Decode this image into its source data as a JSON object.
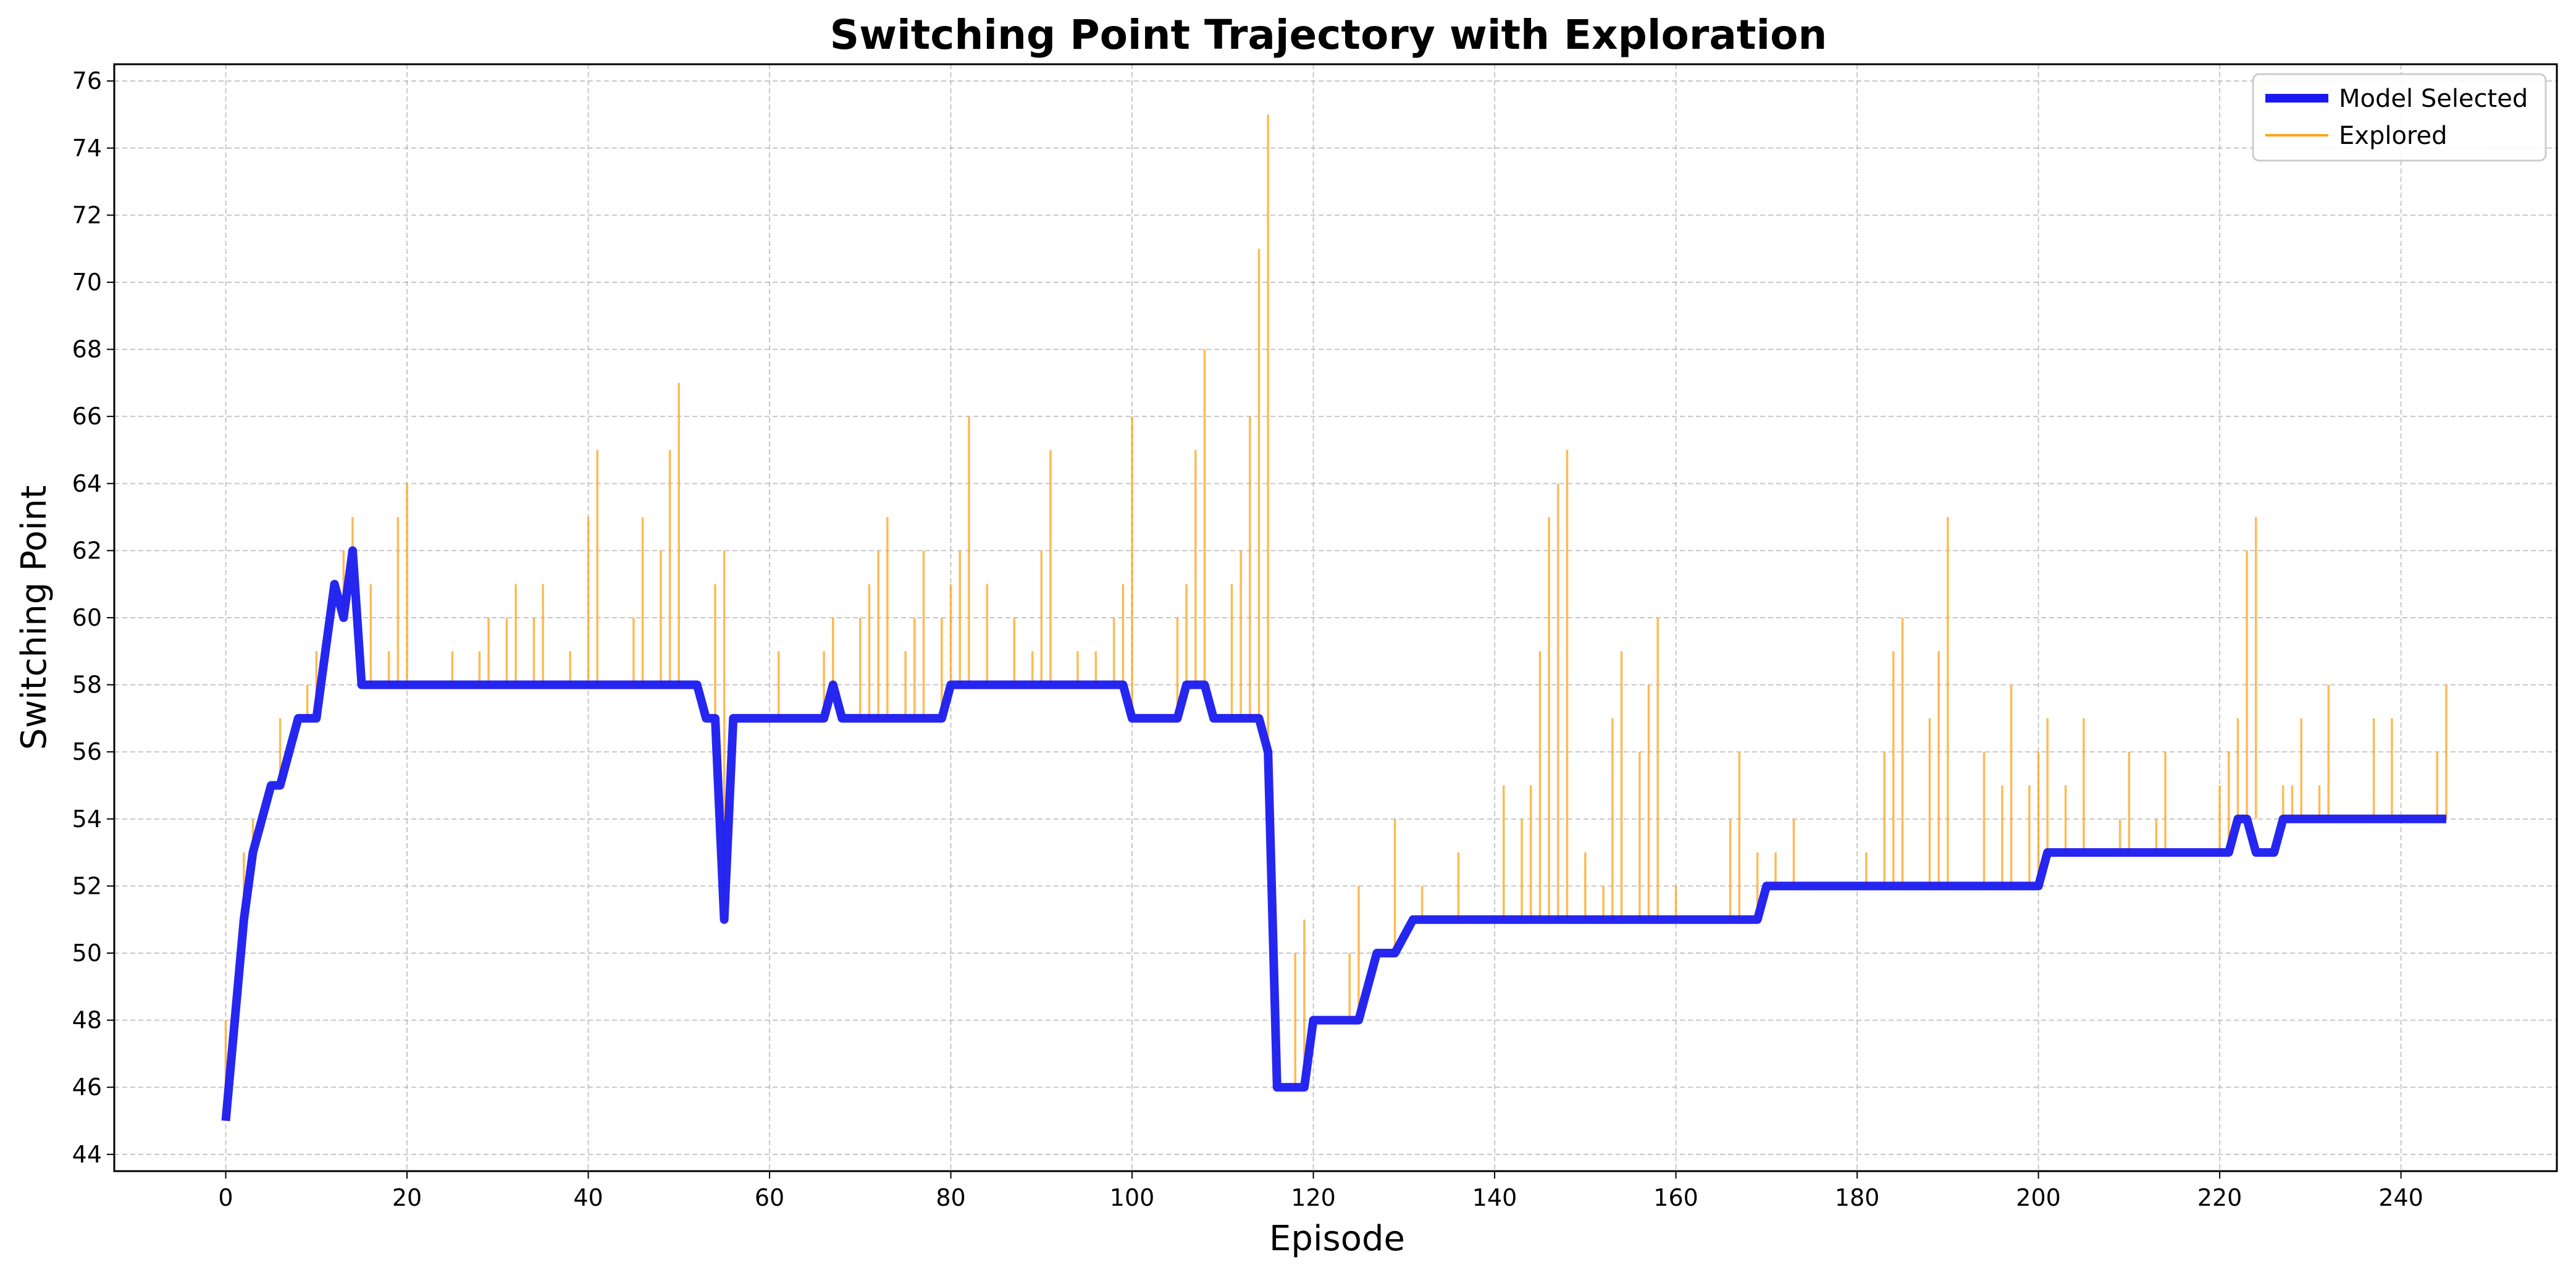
{
  "chart_data": {
    "type": "line",
    "title": "Switching Point Trajectory with Exploration",
    "xlabel": "Episode",
    "ylabel": "Switching Point",
    "xlim": [
      -12.3,
      257.2
    ],
    "ylim": [
      43.5,
      76.5
    ],
    "xticks": [
      0,
      20,
      40,
      60,
      80,
      100,
      120,
      140,
      160,
      180,
      200,
      220,
      240
    ],
    "yticks": [
      44,
      46,
      48,
      50,
      52,
      54,
      56,
      58,
      60,
      62,
      64,
      66,
      68,
      70,
      72,
      74,
      76
    ],
    "grid": true,
    "legend_position": "top-right",
    "colors": {
      "model": "#1a1af0",
      "explored": "#ffa41c"
    },
    "series": [
      {
        "name": "Model Selected",
        "kind": "line",
        "x": [
          0,
          1,
          2,
          3,
          4,
          5,
          6,
          7,
          8,
          9,
          10,
          11,
          12,
          13,
          14,
          15,
          16,
          52,
          53,
          54,
          55,
          56,
          66,
          67,
          68,
          79,
          80,
          99,
          100,
          105,
          106,
          108,
          109,
          114,
          115,
          116,
          119,
          120,
          124,
          125,
          127,
          128,
          129,
          131,
          132,
          169,
          170,
          200,
          201,
          221,
          222,
          223,
          224,
          226,
          227,
          245
        ],
        "y": [
          45,
          48,
          51,
          53,
          54,
          55,
          55,
          56,
          57,
          57,
          57,
          59,
          61,
          60,
          62,
          58,
          58,
          58,
          57,
          57,
          51,
          57,
          57,
          58,
          57,
          57,
          58,
          58,
          57,
          57,
          58,
          58,
          57,
          57,
          56,
          46,
          46,
          48,
          48,
          48,
          50,
          50,
          50,
          51,
          51,
          51,
          52,
          52,
          53,
          53,
          54,
          54,
          53,
          53,
          54,
          54
        ]
      },
      {
        "name": "Explored",
        "kind": "vlines",
        "segments": [
          [
            0,
            45,
            48
          ],
          [
            2,
            51,
            53
          ],
          [
            3,
            53,
            54
          ],
          [
            6,
            55,
            57
          ],
          [
            9,
            57,
            58
          ],
          [
            10,
            57,
            59
          ],
          [
            13,
            60,
            62
          ],
          [
            14,
            62,
            63
          ],
          [
            16,
            58,
            61
          ],
          [
            18,
            58,
            59
          ],
          [
            19,
            58,
            63
          ],
          [
            20,
            58,
            64
          ],
          [
            25,
            58,
            59
          ],
          [
            28,
            58,
            59
          ],
          [
            29,
            58,
            60
          ],
          [
            31,
            58,
            60
          ],
          [
            32,
            58,
            61
          ],
          [
            34,
            58,
            60
          ],
          [
            35,
            58,
            61
          ],
          [
            38,
            58,
            59
          ],
          [
            40,
            58,
            63
          ],
          [
            41,
            58,
            65
          ],
          [
            45,
            58,
            60
          ],
          [
            46,
            58,
            63
          ],
          [
            48,
            58,
            62
          ],
          [
            49,
            58,
            65
          ],
          [
            50,
            58,
            67
          ],
          [
            54,
            57,
            61
          ],
          [
            55,
            51,
            62
          ],
          [
            61,
            57,
            59
          ],
          [
            66,
            57,
            59
          ],
          [
            67,
            58,
            60
          ],
          [
            70,
            57,
            60
          ],
          [
            71,
            57,
            61
          ],
          [
            72,
            57,
            62
          ],
          [
            73,
            57,
            63
          ],
          [
            75,
            57,
            59
          ],
          [
            76,
            57,
            60
          ],
          [
            77,
            57,
            62
          ],
          [
            79,
            57,
            60
          ],
          [
            80,
            58,
            61
          ],
          [
            81,
            58,
            62
          ],
          [
            82,
            58,
            66
          ],
          [
            84,
            58,
            61
          ],
          [
            87,
            58,
            60
          ],
          [
            89,
            58,
            59
          ],
          [
            90,
            58,
            62
          ],
          [
            91,
            58,
            65
          ],
          [
            94,
            58,
            59
          ],
          [
            96,
            58,
            59
          ],
          [
            98,
            58,
            60
          ],
          [
            99,
            58,
            61
          ],
          [
            100,
            57,
            66
          ],
          [
            105,
            57,
            60
          ],
          [
            106,
            58,
            61
          ],
          [
            107,
            58,
            65
          ],
          [
            108,
            58,
            68
          ],
          [
            111,
            57,
            61
          ],
          [
            112,
            57,
            62
          ],
          [
            113,
            57,
            66
          ],
          [
            114,
            57,
            71
          ],
          [
            115,
            56,
            75
          ],
          [
            118,
            46,
            50
          ],
          [
            119,
            46,
            51
          ],
          [
            124,
            48,
            50
          ],
          [
            125,
            48,
            52
          ],
          [
            129,
            50,
            54
          ],
          [
            132,
            51,
            52
          ],
          [
            136,
            51,
            53
          ],
          [
            141,
            51,
            55
          ],
          [
            143,
            51,
            54
          ],
          [
            144,
            51,
            55
          ],
          [
            145,
            51,
            59
          ],
          [
            146,
            51,
            63
          ],
          [
            147,
            51,
            64
          ],
          [
            148,
            51,
            65
          ],
          [
            150,
            51,
            53
          ],
          [
            152,
            51,
            52
          ],
          [
            153,
            51,
            57
          ],
          [
            154,
            51,
            59
          ],
          [
            156,
            51,
            56
          ],
          [
            157,
            51,
            58
          ],
          [
            158,
            51,
            60
          ],
          [
            160,
            51,
            52
          ],
          [
            166,
            51,
            54
          ],
          [
            167,
            51,
            56
          ],
          [
            169,
            51,
            53
          ],
          [
            171,
            52,
            53
          ],
          [
            173,
            52,
            54
          ],
          [
            181,
            52,
            53
          ],
          [
            183,
            52,
            56
          ],
          [
            184,
            52,
            59
          ],
          [
            185,
            52,
            60
          ],
          [
            188,
            52,
            57
          ],
          [
            189,
            52,
            59
          ],
          [
            190,
            52,
            63
          ],
          [
            194,
            52,
            56
          ],
          [
            196,
            52,
            55
          ],
          [
            197,
            52,
            58
          ],
          [
            199,
            52,
            55
          ],
          [
            200,
            52,
            56
          ],
          [
            201,
            53,
            57
          ],
          [
            203,
            53,
            55
          ],
          [
            205,
            53,
            57
          ],
          [
            209,
            53,
            54
          ],
          [
            210,
            53,
            56
          ],
          [
            213,
            53,
            54
          ],
          [
            214,
            53,
            56
          ],
          [
            220,
            53,
            55
          ],
          [
            221,
            53,
            56
          ],
          [
            222,
            54,
            57
          ],
          [
            223,
            54,
            62
          ],
          [
            224,
            54,
            63
          ],
          [
            227,
            54,
            55
          ],
          [
            228,
            54,
            55
          ],
          [
            229,
            54,
            57
          ],
          [
            231,
            54,
            55
          ],
          [
            232,
            54,
            58
          ],
          [
            237,
            54,
            57
          ],
          [
            239,
            54,
            57
          ],
          [
            244,
            54,
            56
          ],
          [
            245,
            54,
            58
          ]
        ]
      }
    ]
  }
}
